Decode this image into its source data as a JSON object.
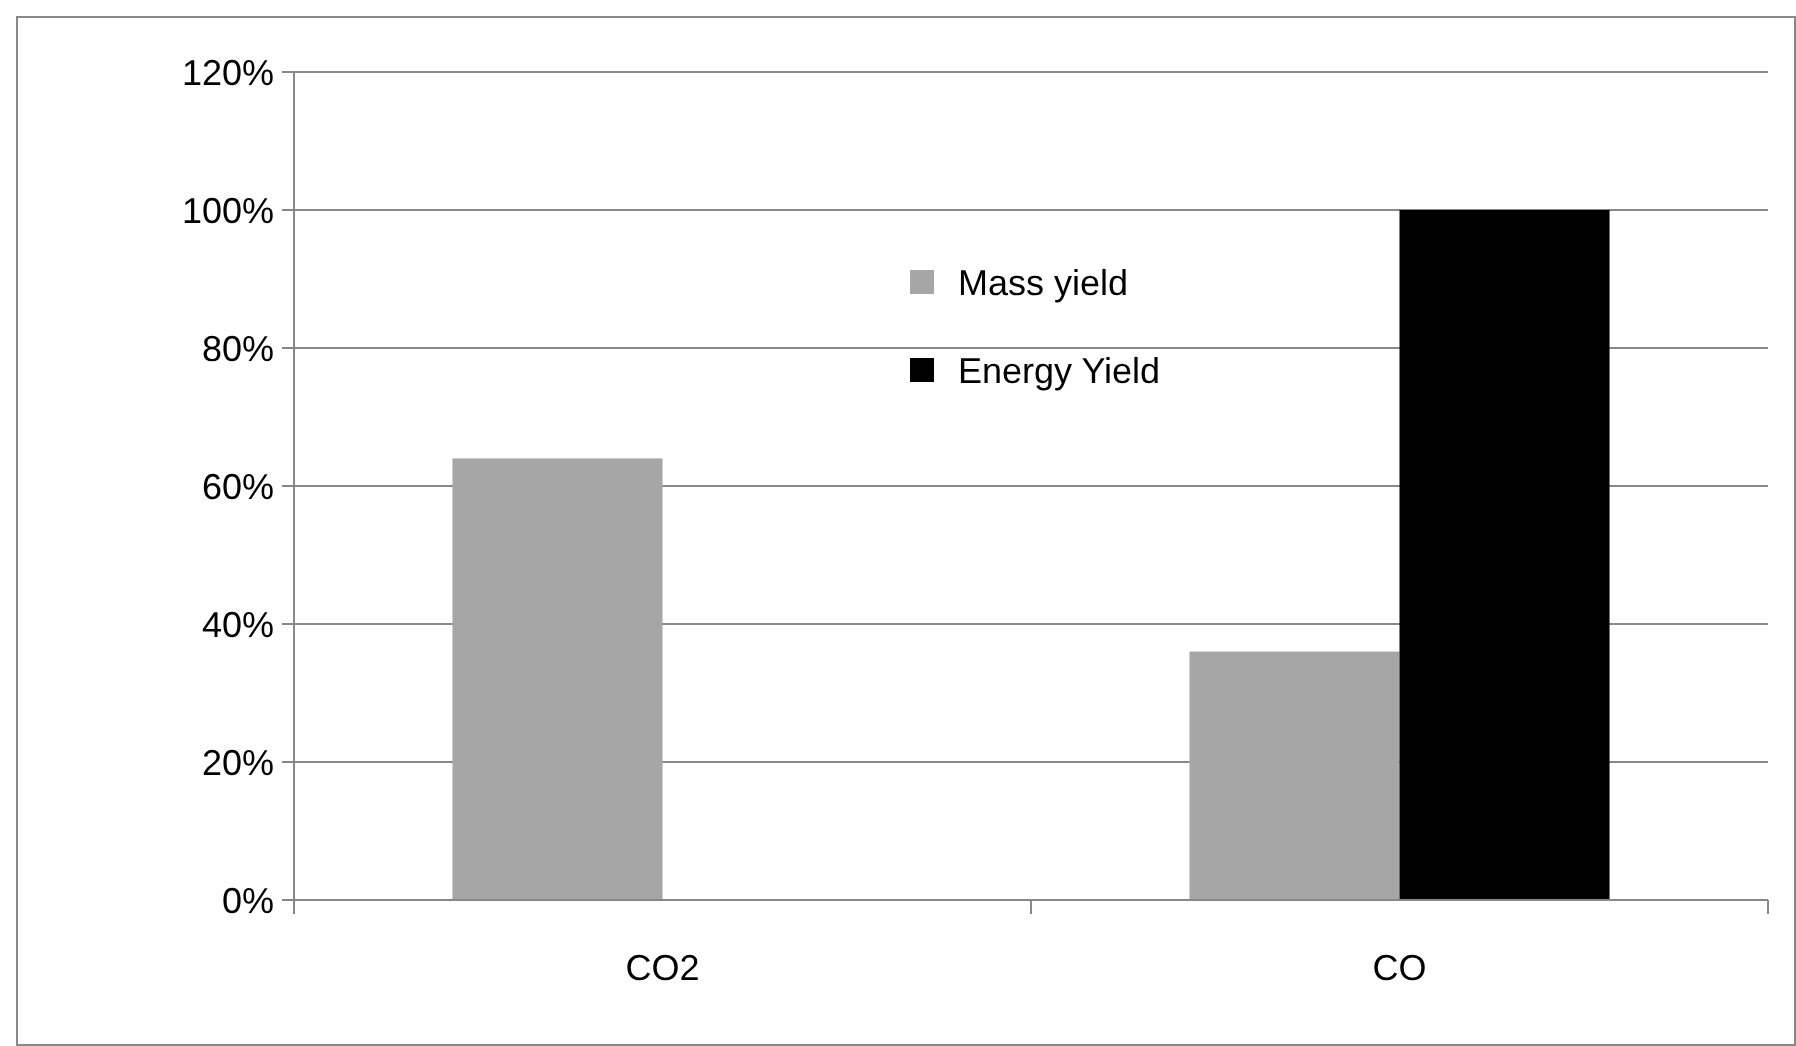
{
  "chart_data": {
    "type": "bar",
    "categories": [
      "CO2",
      "CO"
    ],
    "series": [
      {
        "name": "Mass yield",
        "color": "#a6a6a6",
        "values": [
          64,
          36
        ]
      },
      {
        "name": "Energy Yield",
        "color": "#000000",
        "values": [
          0,
          100
        ]
      }
    ],
    "ylim": [
      0,
      120
    ],
    "yticks": [
      {
        "value": 0,
        "label": "0%"
      },
      {
        "value": 20,
        "label": "20%"
      },
      {
        "value": 40,
        "label": "40%"
      },
      {
        "value": 60,
        "label": "60%"
      },
      {
        "value": 80,
        "label": "80%"
      },
      {
        "value": 100,
        "label": "100%"
      },
      {
        "value": 120,
        "label": "120%"
      }
    ],
    "grid": "y",
    "legend": "top"
  }
}
